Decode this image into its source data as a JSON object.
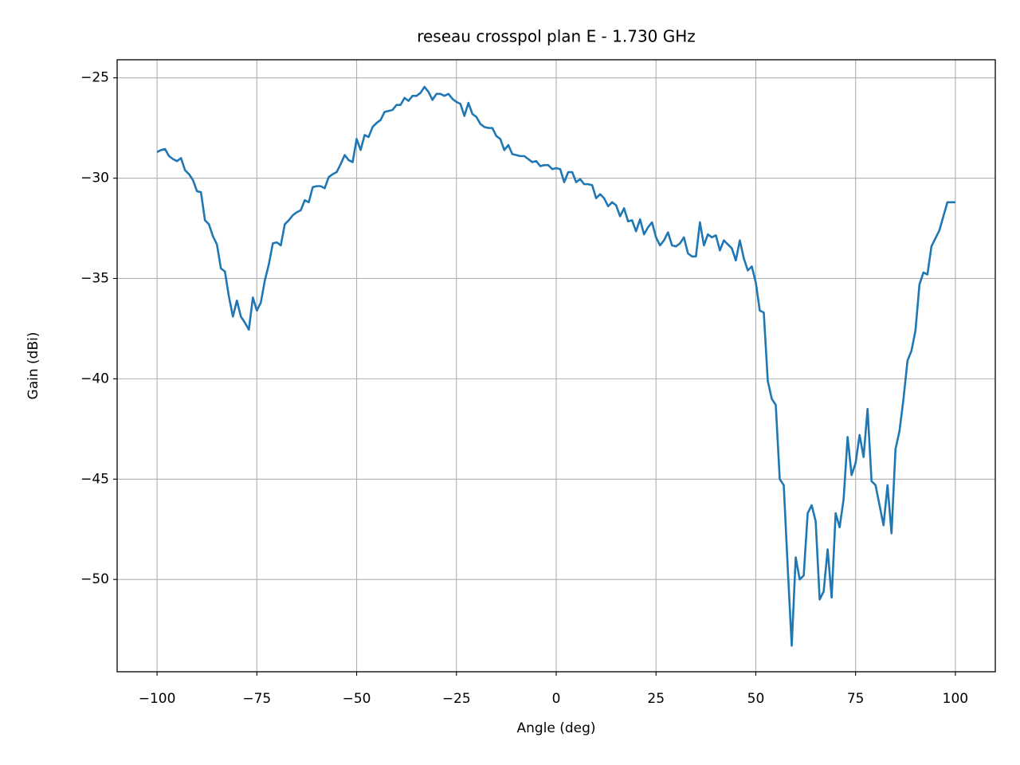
{
  "chart_data": {
    "type": "line",
    "title": "reseau crosspol plan E - 1.730 GHz",
    "x_label": "Angle (deg)",
    "y_label": "Gain (dBi)",
    "xlim": [
      -110,
      110
    ],
    "ylim": [
      -54.6,
      -24.1
    ],
    "xticks": [
      {
        "value": -100,
        "label": "−100"
      },
      {
        "value": -75,
        "label": "−75"
      },
      {
        "value": -50,
        "label": "−50"
      },
      {
        "value": -25,
        "label": "−25"
      },
      0,
      25,
      50,
      75,
      100
    ],
    "yticks": [
      {
        "value": -50,
        "label": "−50"
      },
      {
        "value": -45,
        "label": "−45"
      },
      {
        "value": -40,
        "label": "−40"
      },
      {
        "value": -35,
        "label": "−35"
      },
      {
        "value": -30,
        "label": "−30"
      },
      {
        "value": -25,
        "label": "−25"
      }
    ],
    "grid": true,
    "x": [
      -100,
      -99,
      -98,
      -97,
      -96,
      -95,
      -94,
      -93,
      -92,
      -91,
      -90,
      -89,
      -88,
      -87,
      -86,
      -85,
      -84,
      -83,
      -82,
      -81,
      -80,
      -79,
      -78,
      -77,
      -76,
      -75,
      -74,
      -73,
      -72,
      -71,
      -70,
      -69,
      -68,
      -67,
      -66,
      -65,
      -64,
      -63,
      -62,
      -61,
      -60,
      -59,
      -58,
      -57,
      -56,
      -55,
      -54,
      -53,
      -52,
      -51,
      -50,
      -49,
      -48,
      -47,
      -46,
      -45,
      -44,
      -43,
      -42,
      -41,
      -40,
      -39,
      -38,
      -37,
      -36,
      -35,
      -34,
      -33,
      -32,
      -31,
      -30,
      -29,
      -28,
      -27,
      -26,
      -25,
      -24,
      -23,
      -22,
      -21,
      -20,
      -19,
      -18,
      -17,
      -16,
      -15,
      -14,
      -13,
      -12,
      -11,
      -10,
      -9,
      -8,
      -7,
      -6,
      -5,
      -4,
      -3,
      -2,
      -1,
      0,
      1,
      2,
      3,
      4,
      5,
      6,
      7,
      8,
      9,
      10,
      11,
      12,
      13,
      14,
      15,
      16,
      17,
      18,
      19,
      20,
      21,
      22,
      23,
      24,
      25,
      26,
      27,
      28,
      29,
      30,
      31,
      32,
      33,
      34,
      35,
      36,
      37,
      38,
      39,
      40,
      41,
      42,
      43,
      44,
      45,
      46,
      47,
      48,
      49,
      50,
      51,
      52,
      53,
      54,
      55,
      56,
      57,
      58,
      59,
      60,
      61,
      62,
      63,
      64,
      65,
      66,
      67,
      68,
      69,
      70,
      71,
      72,
      73,
      74,
      75,
      76,
      77,
      78,
      79,
      80,
      81,
      82,
      83,
      84,
      85,
      86,
      87,
      88,
      89,
      90,
      91,
      92,
      93,
      94,
      95,
      96,
      97,
      98,
      99,
      100
    ],
    "series": [
      {
        "color": "#1f77b4",
        "values": [
          -28.7,
          -28.6,
          -28.55,
          -28.9,
          -29.05,
          -29.15,
          -29.0,
          -29.6,
          -29.8,
          -30.1,
          -30.65,
          -30.7,
          -32.1,
          -32.3,
          -32.9,
          -33.3,
          -34.5,
          -34.65,
          -35.9,
          -36.9,
          -36.1,
          -36.9,
          -37.2,
          -37.55,
          -35.95,
          -36.6,
          -36.2,
          -35.1,
          -34.3,
          -33.25,
          -33.2,
          -33.35,
          -32.3,
          -32.1,
          -31.85,
          -31.7,
          -31.6,
          -31.1,
          -31.2,
          -30.45,
          -30.4,
          -30.4,
          -30.5,
          -29.95,
          -29.8,
          -29.7,
          -29.3,
          -28.85,
          -29.1,
          -29.2,
          -28.05,
          -28.6,
          -27.85,
          -27.95,
          -27.45,
          -27.25,
          -27.1,
          -26.7,
          -26.65,
          -26.6,
          -26.35,
          -26.35,
          -26.0,
          -26.15,
          -25.9,
          -25.9,
          -25.75,
          -25.45,
          -25.7,
          -26.1,
          -25.8,
          -25.8,
          -25.9,
          -25.8,
          -26.05,
          -26.2,
          -26.3,
          -26.9,
          -26.25,
          -26.8,
          -26.95,
          -27.3,
          -27.45,
          -27.5,
          -27.5,
          -27.9,
          -28.05,
          -28.6,
          -28.35,
          -28.8,
          -28.85,
          -28.9,
          -28.9,
          -29.05,
          -29.2,
          -29.15,
          -29.4,
          -29.35,
          -29.35,
          -29.55,
          -29.5,
          -29.55,
          -30.2,
          -29.7,
          -29.7,
          -30.2,
          -30.05,
          -30.3,
          -30.3,
          -30.35,
          -31.0,
          -30.8,
          -31.0,
          -31.4,
          -31.2,
          -31.35,
          -31.9,
          -31.5,
          -32.15,
          -32.1,
          -32.65,
          -32.05,
          -32.8,
          -32.45,
          -32.2,
          -32.95,
          -33.35,
          -33.1,
          -32.7,
          -33.35,
          -33.4,
          -33.25,
          -32.95,
          -33.75,
          -33.9,
          -33.9,
          -32.2,
          -33.35,
          -32.8,
          -32.95,
          -32.85,
          -33.6,
          -33.1,
          -33.3,
          -33.5,
          -34.1,
          -33.1,
          -34.0,
          -34.6,
          -34.4,
          -35.2,
          -36.6,
          -36.7,
          -40.1,
          -41.0,
          -41.3,
          -45.0,
          -45.3,
          -49.4,
          -53.3,
          -48.9,
          -50.0,
          -49.8,
          -46.7,
          -46.3,
          -47.1,
          -51.0,
          -50.6,
          -48.5,
          -50.9,
          -46.7,
          -47.4,
          -46.0,
          -42.9,
          -44.8,
          -44.2,
          -42.8,
          -43.9,
          -41.5,
          -45.1,
          -45.3,
          -46.3,
          -47.3,
          -45.3,
          -47.7,
          -43.5,
          -42.6,
          -41.0,
          -39.1,
          -38.6,
          -37.6,
          -35.3,
          -34.7,
          -34.8,
          -33.4,
          -33.0,
          -32.6,
          -31.9,
          -31.2,
          -31.2,
          -31.2
        ]
      }
    ]
  }
}
